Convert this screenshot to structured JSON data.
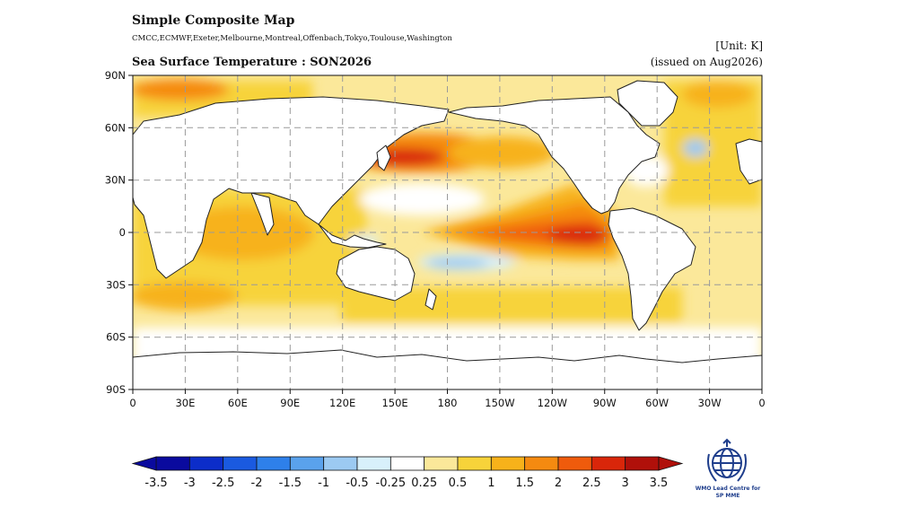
{
  "header": {
    "title": "Simple Composite Map",
    "centres": "CMCC,ECMWF,Exeter,Melbourne,Montreal,Offenbach,Tokyo,Toulouse,Washington",
    "unit": "[Unit: K]",
    "subtitle": "Sea Surface Temperature : SON2026",
    "issued": "(issued on Aug2026)"
  },
  "map": {
    "lat_labels": [
      "90N",
      "60N",
      "30N",
      "0",
      "30S",
      "60S",
      "90S"
    ],
    "lon_labels": [
      "0",
      "30E",
      "60E",
      "90E",
      "120E",
      "150E",
      "180",
      "150W",
      "120W",
      "90W",
      "60W",
      "30W",
      "0"
    ],
    "lon_range": [
      0,
      360
    ],
    "lat_range": [
      -90,
      90
    ],
    "gridlines": true
  },
  "colorbar": {
    "tick_labels": [
      "-3.5",
      "-3",
      "-2.5",
      "-2",
      "-1.5",
      "-1",
      "-0.5",
      "-0.25",
      "0.25",
      "0.5",
      "1",
      "1.5",
      "2",
      "2.5",
      "3",
      "3.5"
    ],
    "colors": [
      "#0a0a9e",
      "#0c2dc9",
      "#1a5ae0",
      "#2e80ea",
      "#5aa2ec",
      "#9ccaf2",
      "#d8f0fb",
      "#ffffff",
      "#fbe89a",
      "#f7d33a",
      "#f7b21a",
      "#f58a10",
      "#ef5b0c",
      "#d9260a",
      "#b0100a"
    ]
  },
  "logo": {
    "line1": "WMO Lead Centre for",
    "line2": "SP MME"
  }
}
